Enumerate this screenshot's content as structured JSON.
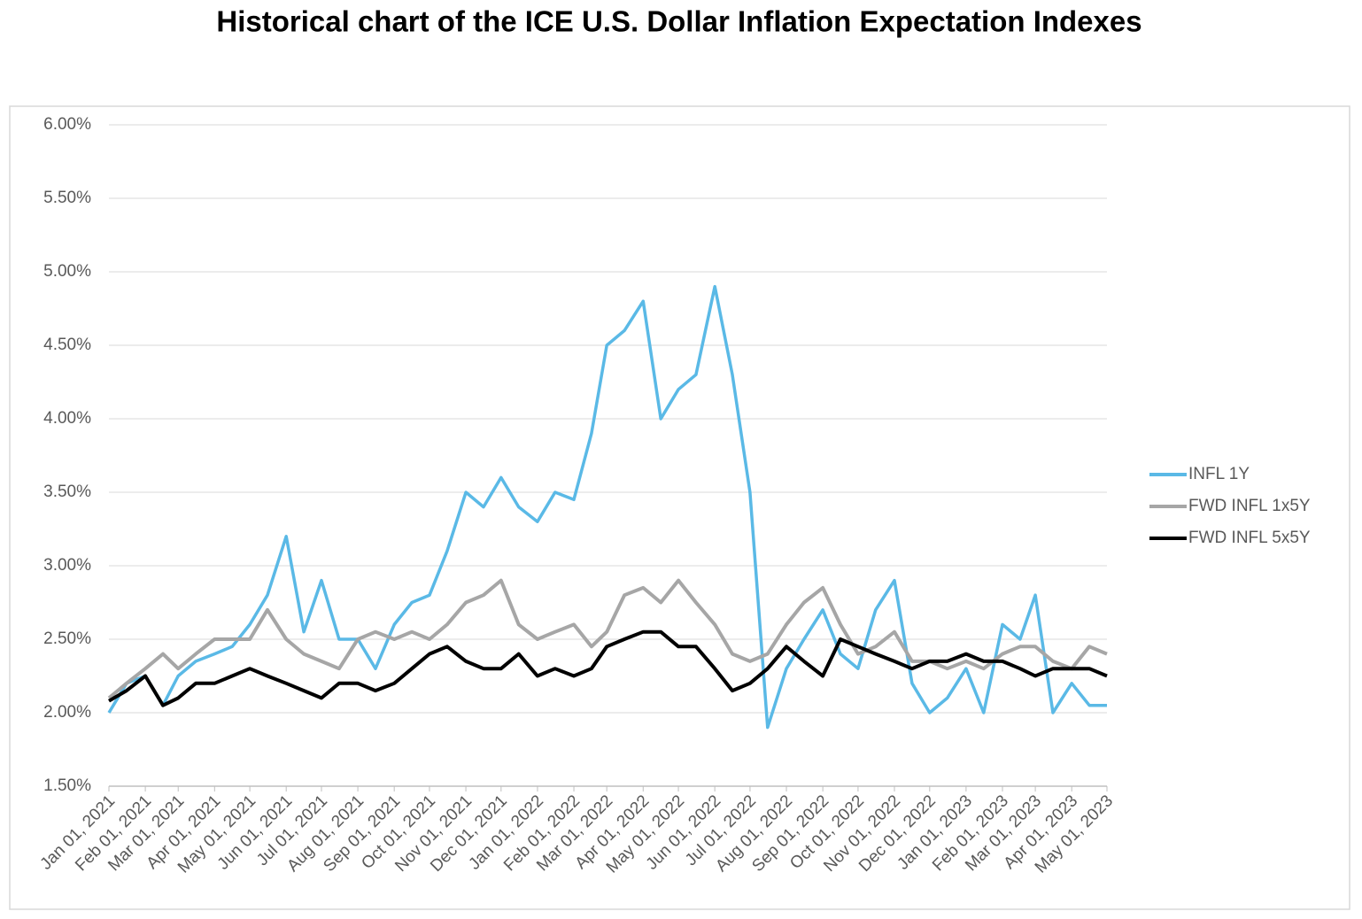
{
  "chart_data": {
    "type": "line",
    "title": "Historical chart of the ICE U.S. Dollar Inflation Expectation Indexes",
    "x": [
      "2021-01-01",
      "2021-01-16",
      "2021-02-01",
      "2021-02-16",
      "2021-03-01",
      "2021-03-16",
      "2021-04-01",
      "2021-04-16",
      "2021-05-01",
      "2021-05-16",
      "2021-06-01",
      "2021-06-16",
      "2021-07-01",
      "2021-07-16",
      "2021-08-01",
      "2021-08-16",
      "2021-09-01",
      "2021-09-16",
      "2021-10-01",
      "2021-10-16",
      "2021-11-01",
      "2021-11-16",
      "2021-12-01",
      "2021-12-16",
      "2022-01-01",
      "2022-01-16",
      "2022-02-01",
      "2022-02-16",
      "2022-03-01",
      "2022-03-16",
      "2022-04-01",
      "2022-04-16",
      "2022-05-01",
      "2022-05-16",
      "2022-06-01",
      "2022-06-16",
      "2022-07-01",
      "2022-07-16",
      "2022-08-01",
      "2022-08-16",
      "2022-09-01",
      "2022-09-16",
      "2022-10-01",
      "2022-10-16",
      "2022-11-01",
      "2022-11-16",
      "2022-12-01",
      "2022-12-16",
      "2023-01-01",
      "2023-01-16",
      "2023-02-01",
      "2023-02-16",
      "2023-03-01",
      "2023-03-16",
      "2023-04-01",
      "2023-04-16",
      "2023-05-01"
    ],
    "series": [
      {
        "name": "INFL 1Y",
        "color": "#5ab9e6",
        "values": [
          2.0,
          2.2,
          2.25,
          2.05,
          2.25,
          2.35,
          2.4,
          2.45,
          2.6,
          2.8,
          3.2,
          2.55,
          2.9,
          2.5,
          2.5,
          2.3,
          2.6,
          2.75,
          2.8,
          3.1,
          3.5,
          3.4,
          3.6,
          3.4,
          3.3,
          3.5,
          3.45,
          3.9,
          4.5,
          4.6,
          4.8,
          4.0,
          4.2,
          4.3,
          4.9,
          4.3,
          3.5,
          1.9,
          2.3,
          2.5,
          2.7,
          2.4,
          2.3,
          2.7,
          2.9,
          2.2,
          2.0,
          2.1,
          2.3,
          2.0,
          2.6,
          2.5,
          2.8,
          2.0,
          2.2,
          2.05,
          2.05
        ]
      },
      {
        "name": "FWD INFL 1x5Y",
        "color": "#a6a6a6",
        "values": [
          2.1,
          2.2,
          2.3,
          2.4,
          2.3,
          2.4,
          2.5,
          2.5,
          2.5,
          2.7,
          2.5,
          2.4,
          2.35,
          2.3,
          2.5,
          2.55,
          2.5,
          2.55,
          2.5,
          2.6,
          2.75,
          2.8,
          2.9,
          2.6,
          2.5,
          2.55,
          2.6,
          2.45,
          2.55,
          2.8,
          2.85,
          2.75,
          2.9,
          2.75,
          2.6,
          2.4,
          2.35,
          2.4,
          2.6,
          2.75,
          2.85,
          2.6,
          2.4,
          2.45,
          2.55,
          2.35,
          2.35,
          2.3,
          2.35,
          2.3,
          2.4,
          2.45,
          2.45,
          2.35,
          2.3,
          2.45,
          2.4
        ]
      },
      {
        "name": "FWD INFL 5x5Y",
        "color": "#000000",
        "values": [
          2.08,
          2.15,
          2.25,
          2.05,
          2.1,
          2.2,
          2.2,
          2.25,
          2.3,
          2.25,
          2.2,
          2.15,
          2.1,
          2.2,
          2.2,
          2.15,
          2.2,
          2.3,
          2.4,
          2.45,
          2.35,
          2.3,
          2.3,
          2.4,
          2.25,
          2.3,
          2.25,
          2.3,
          2.45,
          2.5,
          2.55,
          2.55,
          2.45,
          2.45,
          2.3,
          2.15,
          2.2,
          2.3,
          2.45,
          2.35,
          2.25,
          2.5,
          2.45,
          2.4,
          2.35,
          2.3,
          2.35,
          2.35,
          2.4,
          2.35,
          2.35,
          2.3,
          2.25,
          2.3,
          2.3,
          2.3,
          2.25
        ]
      }
    ],
    "xlim": [
      "2021-01-01",
      "2023-05-01"
    ],
    "xticks": [
      {
        "value": "2021-01-01",
        "label": "Jan 01, 2021"
      },
      {
        "value": "2021-02-01",
        "label": "Feb 01, 2021"
      },
      {
        "value": "2021-03-01",
        "label": "Mar 01, 2021"
      },
      {
        "value": "2021-04-01",
        "label": "Apr 01, 2021"
      },
      {
        "value": "2021-05-01",
        "label": "May 01, 2021"
      },
      {
        "value": "2021-06-01",
        "label": "Jun 01, 2021"
      },
      {
        "value": "2021-07-01",
        "label": "Jul 01, 2021"
      },
      {
        "value": "2021-08-01",
        "label": "Aug 01, 2021"
      },
      {
        "value": "2021-09-01",
        "label": "Sep 01, 2021"
      },
      {
        "value": "2021-10-01",
        "label": "Oct 01, 2021"
      },
      {
        "value": "2021-11-01",
        "label": "Nov 01, 2021"
      },
      {
        "value": "2021-12-01",
        "label": "Dec 01, 2021"
      },
      {
        "value": "2022-01-01",
        "label": "Jan 01, 2022"
      },
      {
        "value": "2022-02-01",
        "label": "Feb 01, 2022"
      },
      {
        "value": "2022-03-01",
        "label": "Mar 01, 2022"
      },
      {
        "value": "2022-04-01",
        "label": "Apr 01, 2022"
      },
      {
        "value": "2022-05-01",
        "label": "May 01, 2022"
      },
      {
        "value": "2022-06-01",
        "label": "Jun 01, 2022"
      },
      {
        "value": "2022-07-01",
        "label": "Jul 01, 2022"
      },
      {
        "value": "2022-08-01",
        "label": "Aug 01, 2022"
      },
      {
        "value": "2022-09-01",
        "label": "Sep 01, 2022"
      },
      {
        "value": "2022-10-01",
        "label": "Oct 01, 2022"
      },
      {
        "value": "2022-11-01",
        "label": "Nov 01, 2022"
      },
      {
        "value": "2022-12-01",
        "label": "Dec 01, 2022"
      },
      {
        "value": "2023-01-01",
        "label": "Jan 01, 2023"
      },
      {
        "value": "2023-02-01",
        "label": "Feb 01, 2023"
      },
      {
        "value": "2023-03-01",
        "label": "Mar 01, 2023"
      },
      {
        "value": "2023-04-01",
        "label": "Apr 01, 2023"
      },
      {
        "value": "2023-05-01",
        "label": "May 01, 2023"
      }
    ],
    "ylim": [
      1.5,
      6
    ],
    "yticks": [
      {
        "value": 1.5,
        "label": "1.50%"
      },
      {
        "value": 2,
        "label": "2.00%"
      },
      {
        "value": 2.5,
        "label": "2.50%"
      },
      {
        "value": 3,
        "label": "3.00%"
      },
      {
        "value": 3.5,
        "label": "3.50%"
      },
      {
        "value": 4,
        "label": "4.00%"
      },
      {
        "value": 4.5,
        "label": "4.50%"
      },
      {
        "value": 5,
        "label": "5.00%"
      },
      {
        "value": 5.5,
        "label": "5.50%"
      },
      {
        "value": 6,
        "label": "6.00%"
      }
    ],
    "grid": true,
    "legend": "right"
  }
}
